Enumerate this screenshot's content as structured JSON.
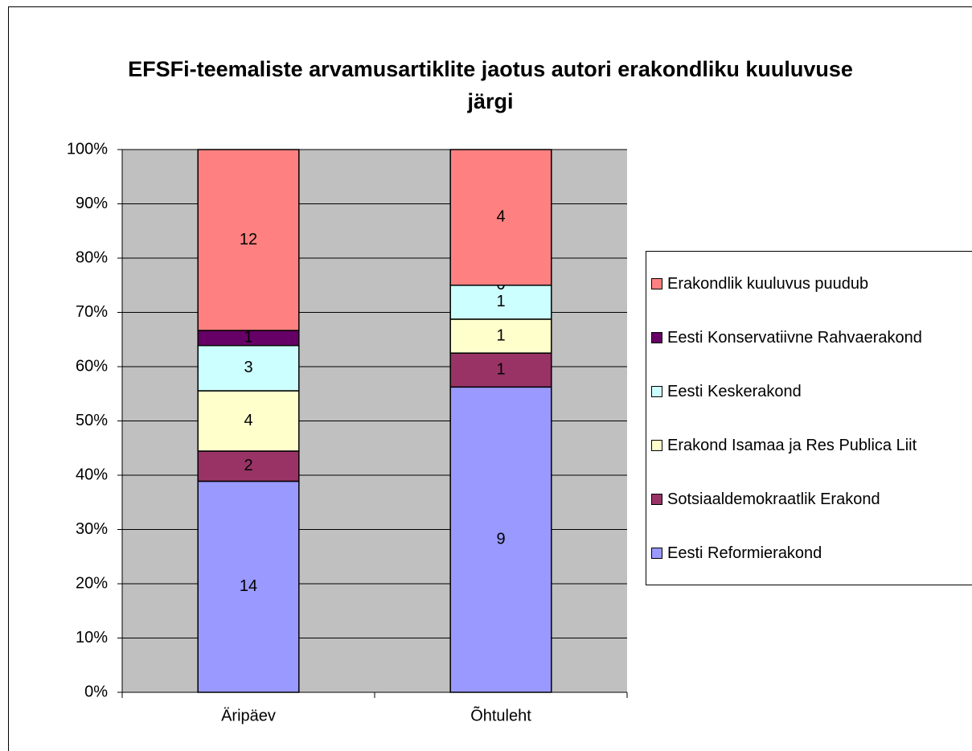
{
  "chart_data": {
    "type": "bar",
    "stacking": "percent",
    "title": "EFSFi-teemaliste arvamusartiklite jaotus autori erakondliku kuuluvuse järgi",
    "categories": [
      "Äripäev",
      "Õhtuleht"
    ],
    "series": [
      {
        "name": "Eesti Reformierakond",
        "color": "#9999ff",
        "values": [
          14,
          9
        ]
      },
      {
        "name": "Sotsiaaldemokraatlik Erakond",
        "color": "#993366",
        "values": [
          2,
          1
        ]
      },
      {
        "name": "Erakond Isamaa ja Res Publica Liit",
        "color": "#ffffcc",
        "values": [
          4,
          1
        ]
      },
      {
        "name": "Eesti Keskerakond",
        "color": "#ccffff",
        "values": [
          3,
          1
        ]
      },
      {
        "name": "Eesti Konservatiivne Rahvaerakond",
        "color": "#660066",
        "values": [
          1,
          0
        ]
      },
      {
        "name": "Erakondlik kuuluvus puudub",
        "color": "#ff8080",
        "values": [
          12,
          4
        ]
      }
    ],
    "ylim": [
      0,
      100
    ],
    "yticks": [
      {
        "value": 0,
        "label": "0%"
      },
      {
        "value": 10,
        "label": "10%"
      },
      {
        "value": 20,
        "label": "20%"
      },
      {
        "value": 30,
        "label": "30%"
      },
      {
        "value": 40,
        "label": "40%"
      },
      {
        "value": 50,
        "label": "50%"
      },
      {
        "value": 60,
        "label": "60%"
      },
      {
        "value": 70,
        "label": "70%"
      },
      {
        "value": 80,
        "label": "80%"
      },
      {
        "value": 90,
        "label": "90%"
      },
      {
        "value": 100,
        "label": "100%"
      }
    ],
    "grid": true,
    "plot_background": "#c0c0c0",
    "legend": "right"
  }
}
